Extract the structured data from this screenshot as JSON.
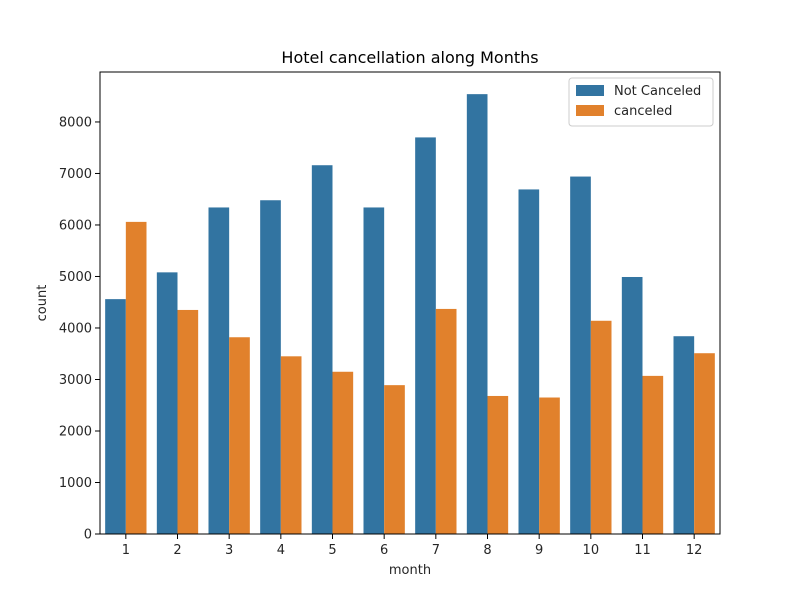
{
  "chart_data": {
    "type": "bar",
    "title": "Hotel cancellation along Months",
    "xlabel": "month",
    "ylabel": "count",
    "categories": [
      "1",
      "2",
      "3",
      "4",
      "5",
      "6",
      "7",
      "8",
      "9",
      "10",
      "11",
      "12"
    ],
    "series": [
      {
        "name": "Not Canceled",
        "color": "#3274a1",
        "values": [
          4560,
          5080,
          6340,
          6480,
          7160,
          6340,
          7700,
          8540,
          6690,
          6940,
          4990,
          3840
        ]
      },
      {
        "name": "canceled",
        "color": "#e1812c",
        "values": [
          6060,
          4350,
          3820,
          3450,
          3150,
          2890,
          4370,
          2680,
          2650,
          4140,
          3070,
          3510
        ]
      }
    ],
    "ylim": [
      0,
      8970
    ],
    "yticks": [
      0,
      1000,
      2000,
      3000,
      4000,
      5000,
      6000,
      7000,
      8000
    ],
    "grid": false,
    "legend_position": "top-right"
  }
}
